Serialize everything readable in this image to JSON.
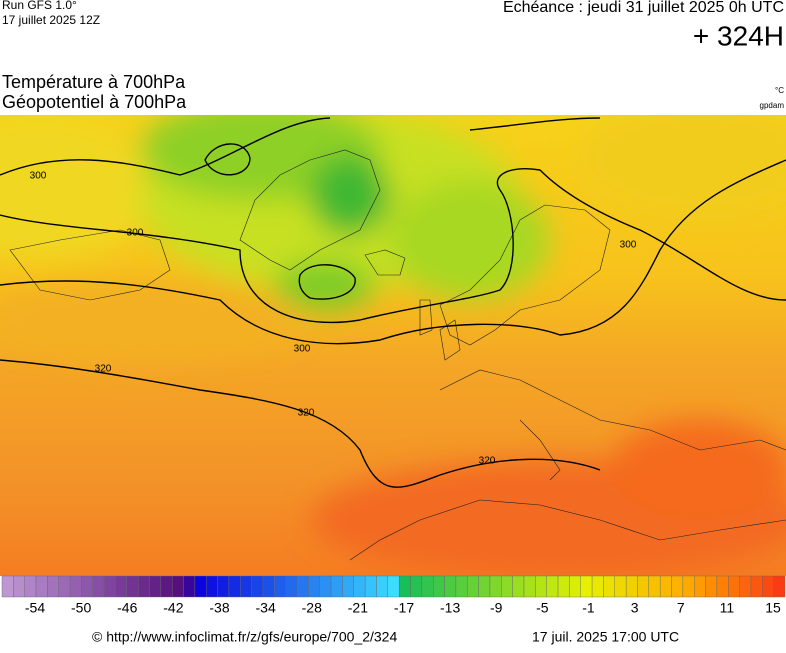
{
  "header": {
    "run": "Run GFS 1.0°",
    "run_date": "17 juillet 2025 12Z",
    "echeance": "Echéance : jeudi 31 juillet 2025 0h UTC",
    "lead": "+ 324H"
  },
  "title": {
    "line1": "Température à 700hPa",
    "line2": "Géopotentiel à 700hPa",
    "unit1": "°C",
    "unit2": "gpdam"
  },
  "contour_labels": [
    300,
    300,
    300,
    300,
    320,
    320,
    320
  ],
  "colorbar": {
    "ticks": [
      -54,
      -50,
      -46,
      -42,
      -38,
      -34,
      -28,
      -21,
      -17,
      -13,
      -9,
      -5,
      -1,
      3,
      7,
      11,
      15
    ]
  },
  "footer": {
    "source": "© http://www.infoclimat.fr/z/gfs/europe/700_2/324",
    "time": "17 juil. 2025 17:00 UTC"
  }
}
